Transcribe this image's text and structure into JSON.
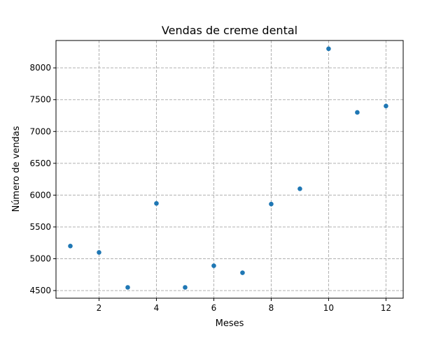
{
  "chart_data": {
    "type": "scatter",
    "title": "Vendas de creme dental",
    "xlabel": "Meses",
    "ylabel": "Número de vendas",
    "x": [
      1,
      2,
      3,
      4,
      5,
      6,
      7,
      8,
      9,
      10,
      11,
      12
    ],
    "y": [
      5200,
      5100,
      4550,
      5870,
      4550,
      4890,
      4780,
      5860,
      6100,
      8300,
      7300,
      7400
    ],
    "xlim": [
      0.5,
      12.6
    ],
    "ylim": [
      4380,
      8430
    ],
    "xticks": [
      2,
      4,
      6,
      8,
      10,
      12
    ],
    "yticks": [
      4500,
      5000,
      5500,
      6000,
      6500,
      7000,
      7500,
      8000
    ],
    "grid": true,
    "grid_style": "dashed",
    "colors": {
      "marker": "#1f77b4",
      "grid": "#b0b0b0",
      "axes": "#000000"
    }
  }
}
